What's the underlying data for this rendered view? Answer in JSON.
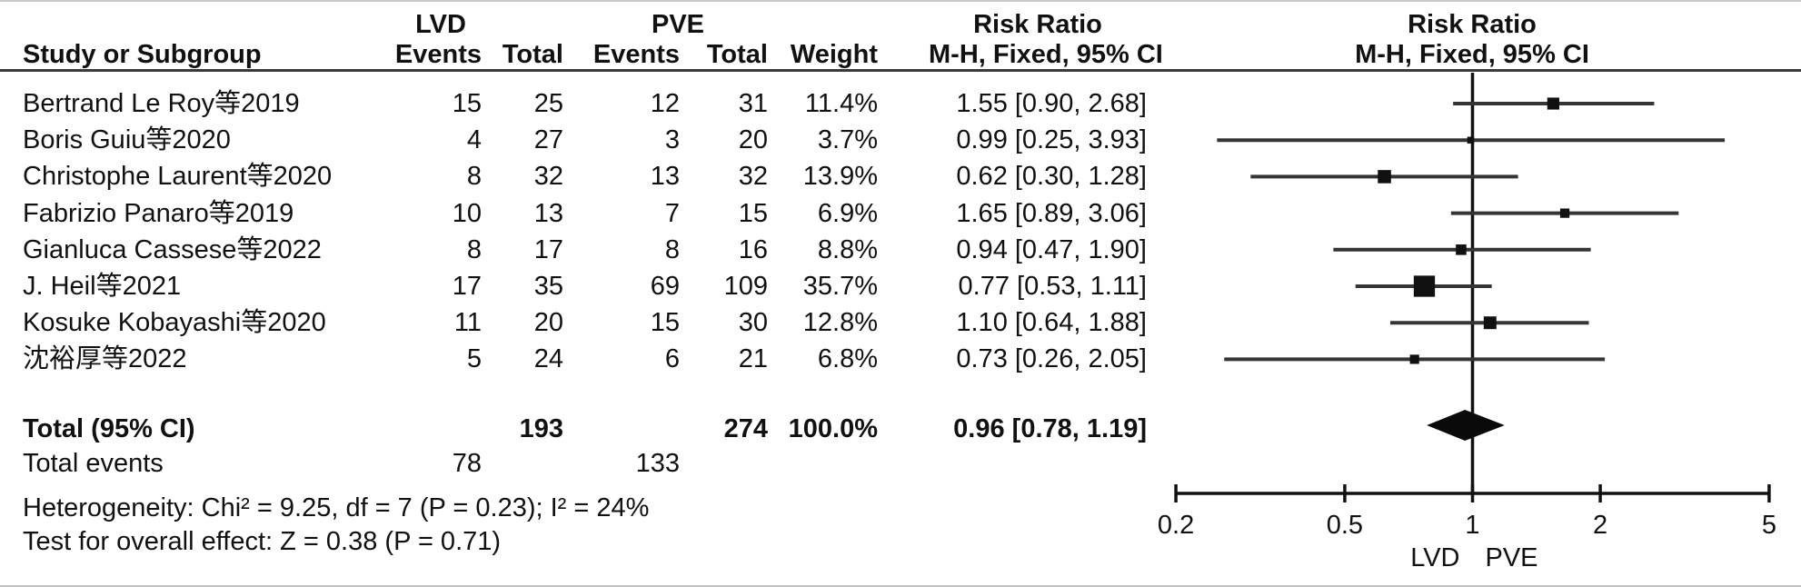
{
  "table": {
    "headers": {
      "study": "Study or Subgroup",
      "group1": "LVD",
      "group2": "PVE",
      "events": "Events",
      "total": "Total",
      "weight": "Weight",
      "risk_ratio": "Risk Ratio",
      "method": "M-H, Fixed, 95% CI"
    },
    "rows": [
      {
        "study": "Bertrand Le Roy等2019",
        "e1": "15",
        "t1": "25",
        "e2": "12",
        "t2": "31",
        "weight": "11.4%",
        "rr": "1.55 [0.90, 2.68]"
      },
      {
        "study": "Boris Guiu等2020",
        "e1": "4",
        "t1": "27",
        "e2": "3",
        "t2": "20",
        "weight": "3.7%",
        "rr": "0.99 [0.25, 3.93]"
      },
      {
        "study": "Christophe Laurent等2020",
        "e1": "8",
        "t1": "32",
        "e2": "13",
        "t2": "32",
        "weight": "13.9%",
        "rr": "0.62 [0.30, 1.28]"
      },
      {
        "study": "Fabrizio Panaro等2019",
        "e1": "10",
        "t1": "13",
        "e2": "7",
        "t2": "15",
        "weight": "6.9%",
        "rr": "1.65 [0.89, 3.06]"
      },
      {
        "study": "Gianluca Cassese等2022",
        "e1": "8",
        "t1": "17",
        "e2": "8",
        "t2": "16",
        "weight": "8.8%",
        "rr": "0.94 [0.47, 1.90]"
      },
      {
        "study": "J. Heil等2021",
        "e1": "17",
        "t1": "35",
        "e2": "69",
        "t2": "109",
        "weight": "35.7%",
        "rr": "0.77 [0.53, 1.11]"
      },
      {
        "study": "Kosuke Kobayashi等2020",
        "e1": "11",
        "t1": "20",
        "e2": "15",
        "t2": "30",
        "weight": "12.8%",
        "rr": "1.10 [0.64, 1.88]"
      },
      {
        "study": "沈裕厚等2022",
        "e1": "5",
        "t1": "24",
        "e2": "6",
        "t2": "21",
        "weight": "6.8%",
        "rr": "0.73 [0.26, 2.05]"
      }
    ],
    "total_row": {
      "label": "Total (95% CI)",
      "t1": "193",
      "t2": "274",
      "weight": "100.0%",
      "rr": "0.96 [0.78, 1.19]"
    },
    "total_events": {
      "label": "Total events",
      "e1": "78",
      "e2": "133"
    },
    "heterogeneity": "Heterogeneity: Chi² = 9.25, df = 7 (P = 0.23); I² = 24%",
    "overall_effect": "Test for overall effect: Z = 0.38 (P = 0.71)"
  },
  "chart_data": {
    "type": "forest",
    "scale": "log",
    "title": "Risk Ratio",
    "subtitle": "M-H, Fixed, 95% CI",
    "xlim": [
      0.2,
      5
    ],
    "axis_ticks": [
      0.2,
      0.5,
      1,
      2,
      5
    ],
    "tick_labels": [
      "0.2",
      "0.5",
      "1",
      "2",
      "5"
    ],
    "favours_left": "LVD",
    "favours_right": "PVE",
    "studies": [
      {
        "name": "Bertrand Le Roy等2019",
        "rr": 1.55,
        "lo": 0.9,
        "hi": 2.68,
        "weight": 11.4
      },
      {
        "name": "Boris Guiu等2020",
        "rr": 0.99,
        "lo": 0.25,
        "hi": 3.93,
        "weight": 3.7
      },
      {
        "name": "Christophe Laurent等2020",
        "rr": 0.62,
        "lo": 0.3,
        "hi": 1.28,
        "weight": 13.9
      },
      {
        "name": "Fabrizio Panaro等2019",
        "rr": 1.65,
        "lo": 0.89,
        "hi": 3.06,
        "weight": 6.9
      },
      {
        "name": "Gianluca Cassese等2022",
        "rr": 0.94,
        "lo": 0.47,
        "hi": 1.9,
        "weight": 8.8
      },
      {
        "name": "J. Heil等2021",
        "rr": 0.77,
        "lo": 0.53,
        "hi": 1.11,
        "weight": 35.7
      },
      {
        "name": "Kosuke Kobayashi等2020",
        "rr": 1.1,
        "lo": 0.64,
        "hi": 1.88,
        "weight": 12.8
      },
      {
        "name": "沈裕厚等2022",
        "rr": 0.73,
        "lo": 0.26,
        "hi": 2.05,
        "weight": 6.8
      }
    ],
    "total": {
      "rr": 0.96,
      "lo": 0.78,
      "hi": 1.19
    }
  },
  "colors": {
    "text": "#111111",
    "rule": "#3b3b3b",
    "ci_line": "#353535",
    "marker": "#111111",
    "diamond": "#0a0a0a"
  }
}
